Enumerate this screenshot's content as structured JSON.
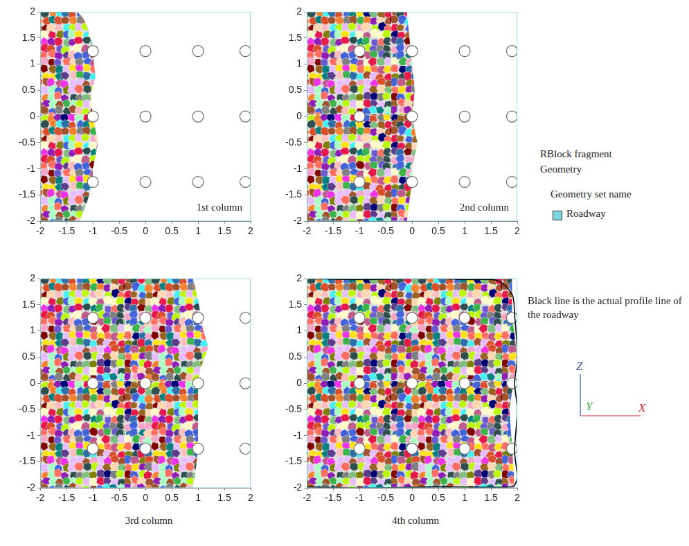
{
  "chart_data": [
    {
      "type": "scatter",
      "title": "1st column",
      "xlim": [
        -2,
        2
      ],
      "ylim": [
        -2,
        2
      ],
      "xticks": [
        -2,
        -1.5,
        -1,
        -0.5,
        0,
        0.5,
        1,
        1.5,
        2
      ],
      "yticks": [
        -2,
        -1.5,
        -1,
        -0.5,
        0,
        0.5,
        1,
        1.5,
        2
      ],
      "grid": false,
      "fragments": {
        "x": [
          -2,
          -2,
          -1.3,
          -1.2,
          -1.05,
          -1.0,
          -0.95,
          -1.05,
          -1.0,
          -0.9,
          -1.0,
          -1.0,
          -1.1,
          -1.25
        ],
        "z": [
          -2,
          2,
          2,
          1.9,
          1.6,
          1.25,
          0.75,
          0.4,
          0,
          -0.5,
          -1.0,
          -1.25,
          -1.6,
          -2
        ]
      },
      "holes": {
        "x": [
          -1,
          0,
          1,
          1.9,
          -1,
          0,
          1,
          1.9,
          -1,
          0,
          1,
          1.9
        ],
        "z": [
          1.25,
          1.25,
          1.25,
          1.25,
          0,
          0,
          0,
          0,
          -1.25,
          -1.25,
          -1.25,
          -1.25
        ]
      },
      "roadway": {
        "x": [
          -2,
          2,
          2,
          -2,
          -2
        ],
        "z": [
          -2,
          -2,
          2,
          2,
          -2
        ],
        "color": "#7fd3e0"
      }
    },
    {
      "type": "scatter",
      "title": "2nd column",
      "xlim": [
        -2,
        2
      ],
      "ylim": [
        -2,
        2
      ],
      "xticks": [
        -2,
        -1.5,
        -1,
        -0.5,
        0,
        0.5,
        1,
        1.5,
        2
      ],
      "yticks": [
        -2,
        -1.5,
        -1,
        -0.5,
        0,
        0.5,
        1,
        1.5,
        2
      ],
      "grid": false,
      "fragments": {
        "x": [
          -2,
          -2,
          -0.1,
          -0.05,
          0,
          0.05,
          0,
          0.1,
          0,
          0,
          -0.05,
          -0.1
        ],
        "z": [
          -2,
          2,
          2,
          1.5,
          1.0,
          0.5,
          0,
          -0.5,
          -1.0,
          -1.25,
          -1.6,
          -2
        ]
      },
      "holes": {
        "x": [
          -1,
          0,
          1,
          1.9,
          -1,
          0,
          1,
          1.9,
          -1,
          0,
          1,
          1.9
        ],
        "z": [
          1.25,
          1.25,
          1.25,
          1.25,
          0,
          0,
          0,
          0,
          -1.25,
          -1.25,
          -1.25,
          -1.25
        ]
      },
      "roadway": {
        "x": [
          -2,
          2,
          2,
          -2,
          -2
        ],
        "z": [
          -2,
          -2,
          2,
          2,
          -2
        ],
        "color": "#7fd3e0"
      }
    },
    {
      "type": "scatter",
      "title": "3rd column",
      "xlim": [
        -2,
        2
      ],
      "ylim": [
        -2,
        2
      ],
      "xticks": [
        -2,
        -1.5,
        -1,
        -0.5,
        0,
        0.5,
        1,
        1.5,
        2
      ],
      "yticks": [
        -2,
        -1.5,
        -1,
        -0.5,
        0,
        0.5,
        1,
        1.5,
        2
      ],
      "grid": false,
      "fragments": {
        "x": [
          -2,
          -2,
          0.9,
          1.0,
          1.1,
          1.2,
          1.05,
          1.0,
          1.0,
          1.0,
          0.95,
          0.9
        ],
        "z": [
          -2,
          2,
          2,
          1.6,
          1.0,
          0.7,
          0.3,
          0,
          -0.5,
          -1.25,
          -1.7,
          -2
        ]
      },
      "holes": {
        "x": [
          -1,
          0,
          1,
          1.9,
          -1,
          0,
          1,
          1.9,
          -1,
          0,
          1,
          1.9
        ],
        "z": [
          1.25,
          1.25,
          1.25,
          1.25,
          0,
          0,
          0,
          0,
          -1.25,
          -1.25,
          -1.25,
          -1.25
        ]
      },
      "roadway": {
        "x": [
          -2,
          2,
          2,
          -2,
          -2
        ],
        "z": [
          -2,
          -2,
          2,
          2,
          -2
        ],
        "color": "#7fd3e0"
      }
    },
    {
      "type": "scatter",
      "title": "4th column",
      "xlim": [
        -2,
        2
      ],
      "ylim": [
        -2,
        2
      ],
      "xticks": [
        -2,
        -1.5,
        -1,
        -0.5,
        0,
        0.5,
        1,
        1.5,
        2
      ],
      "yticks": [
        -2,
        -1.5,
        -1,
        -0.5,
        0,
        0.5,
        1,
        1.5,
        2
      ],
      "grid": false,
      "fragments": {
        "x": [
          -2,
          -2,
          1.9,
          1.9,
          2,
          1.85,
          1.9,
          1.95
        ],
        "z": [
          -2,
          2,
          2,
          1.3,
          0.5,
          -0.5,
          -1.2,
          -2
        ]
      },
      "holes": {
        "x": [
          -1,
          0,
          1,
          1.9,
          -1,
          0,
          1,
          1.9,
          -1,
          0,
          1,
          1.9
        ],
        "z": [
          1.25,
          1.25,
          1.25,
          1.25,
          0,
          0,
          0,
          0,
          -1.25,
          -1.25,
          -1.25,
          -1.25
        ]
      },
      "roadway": {
        "x": [
          -2,
          2,
          2,
          -2,
          -2
        ],
        "z": [
          -2,
          -2,
          2,
          2,
          -2
        ],
        "color": "#7fd3e0"
      },
      "profile": {
        "x": [
          -2,
          -1,
          0,
          0.5,
          1,
          1.6,
          1.9,
          1.95,
          2,
          1.95,
          2,
          1.95,
          2,
          1.9,
          0.5,
          -1,
          -2
        ],
        "z": [
          2,
          1.98,
          2,
          2,
          1.98,
          1.97,
          1.7,
          1.3,
          0.5,
          0,
          -0.5,
          -1.3,
          -1.8,
          -1.98,
          -1.98,
          -2,
          -1.98
        ],
        "color": "#000000"
      }
    }
  ],
  "legend_box": {
    "lines": [
      "RBlock fragment",
      "Geometry"
    ],
    "header": "Geometry set name",
    "entries": [
      {
        "name": "Roadway",
        "color": "#7fd3e0"
      }
    ]
  },
  "annotation": "Black line is the actual profile line of the roadway",
  "axis_triad": [
    {
      "label": "Z",
      "color": "#3b4fa0"
    },
    {
      "label": "Y",
      "color": "#3aa83a"
    },
    {
      "label": "X",
      "color": "#d42a2a"
    }
  ]
}
